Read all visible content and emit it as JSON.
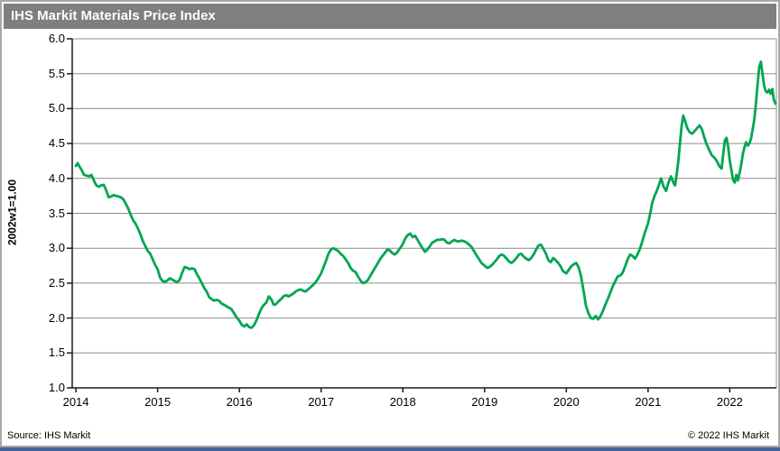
{
  "header": {
    "title": "IHS Markit Materials Price Index"
  },
  "footer": {
    "source": "Source: IHS Markit",
    "copyright": "© 2022  IHS Markit"
  },
  "colors": {
    "header_bg": "#7f7f7f",
    "line": "#00a651",
    "grid": "#8c8c8c",
    "axis": "#1a1a1a",
    "frame_border": "#a9a9a9",
    "bottom_bar": "#44639e"
  },
  "chart_data": {
    "type": "line",
    "title": "IHS Markit Materials Price Index",
    "xlabel": "",
    "ylabel": "2002w1=1.00",
    "ylim": [
      1.0,
      6.0
    ],
    "xlim": [
      2013.955,
      2022.57
    ],
    "grid": "horizontal",
    "legend": "none",
    "ytick_labels": [
      "6.0",
      "5.5",
      "5.0",
      "4.5",
      "4.0",
      "3.5",
      "3.0",
      "2.5",
      "2.0",
      "1.5",
      "1.0"
    ],
    "xtick_labels": [
      "2014",
      "2015",
      "2016",
      "2017",
      "2018",
      "2019",
      "2020",
      "2021",
      "2022"
    ],
    "series": [
      {
        "name": "IHS Markit Materials Price Index (2002w1=1.00)",
        "x": [
          2014.0,
          2014.02,
          2014.05,
          2014.08,
          2014.1,
          2014.13,
          2014.16,
          2014.19,
          2014.22,
          2014.25,
          2014.28,
          2014.31,
          2014.34,
          2014.37,
          2014.4,
          2014.43,
          2014.46,
          2014.49,
          2014.52,
          2014.55,
          2014.58,
          2014.61,
          2014.64,
          2014.67,
          2014.7,
          2014.73,
          2014.76,
          2014.79,
          2014.82,
          2014.85,
          2014.88,
          2014.91,
          2014.94,
          2014.97,
          2015.0,
          2015.03,
          2015.06,
          2015.09,
          2015.12,
          2015.15,
          2015.18,
          2015.21,
          2015.24,
          2015.27,
          2015.3,
          2015.33,
          2015.36,
          2015.39,
          2015.42,
          2015.45,
          2015.48,
          2015.51,
          2015.54,
          2015.57,
          2015.6,
          2015.63,
          2015.66,
          2015.69,
          2015.72,
          2015.75,
          2015.78,
          2015.81,
          2015.84,
          2015.87,
          2015.9,
          2015.93,
          2015.96,
          2016.0,
          2016.03,
          2016.06,
          2016.09,
          2016.12,
          2016.15,
          2016.18,
          2016.21,
          2016.24,
          2016.27,
          2016.3,
          2016.33,
          2016.36,
          2016.39,
          2016.42,
          2016.45,
          2016.48,
          2016.51,
          2016.54,
          2016.57,
          2016.6,
          2016.63,
          2016.66,
          2016.69,
          2016.72,
          2016.75,
          2016.78,
          2016.81,
          2016.84,
          2016.87,
          2016.9,
          2016.93,
          2016.96,
          2017.0,
          2017.03,
          2017.06,
          2017.09,
          2017.12,
          2017.15,
          2017.18,
          2017.21,
          2017.24,
          2017.27,
          2017.3,
          2017.33,
          2017.36,
          2017.39,
          2017.42,
          2017.45,
          2017.48,
          2017.51,
          2017.54,
          2017.57,
          2017.6,
          2017.63,
          2017.66,
          2017.69,
          2017.72,
          2017.75,
          2017.78,
          2017.81,
          2017.84,
          2017.87,
          2017.9,
          2017.93,
          2017.96,
          2018.0,
          2018.03,
          2018.06,
          2018.09,
          2018.12,
          2018.15,
          2018.18,
          2018.21,
          2018.24,
          2018.27,
          2018.3,
          2018.33,
          2018.36,
          2018.39,
          2018.42,
          2018.45,
          2018.48,
          2018.51,
          2018.54,
          2018.57,
          2018.6,
          2018.63,
          2018.66,
          2018.69,
          2018.72,
          2018.75,
          2018.78,
          2018.81,
          2018.84,
          2018.87,
          2018.9,
          2018.93,
          2018.96,
          2019.0,
          2019.03,
          2019.06,
          2019.09,
          2019.12,
          2019.15,
          2019.18,
          2019.21,
          2019.24,
          2019.27,
          2019.3,
          2019.33,
          2019.36,
          2019.39,
          2019.42,
          2019.45,
          2019.48,
          2019.51,
          2019.54,
          2019.57,
          2019.6,
          2019.63,
          2019.66,
          2019.69,
          2019.72,
          2019.75,
          2019.78,
          2019.81,
          2019.84,
          2019.87,
          2019.9,
          2019.93,
          2019.96,
          2020.0,
          2020.03,
          2020.06,
          2020.09,
          2020.12,
          2020.15,
          2020.18,
          2020.21,
          2020.24,
          2020.27,
          2020.3,
          2020.33,
          2020.36,
          2020.39,
          2020.42,
          2020.45,
          2020.48,
          2020.51,
          2020.54,
          2020.57,
          2020.6,
          2020.63,
          2020.66,
          2020.69,
          2020.72,
          2020.75,
          2020.78,
          2020.81,
          2020.84,
          2020.87,
          2020.9,
          2020.93,
          2020.96,
          2021.0,
          2021.03,
          2021.05,
          2021.08,
          2021.11,
          2021.14,
          2021.16,
          2021.19,
          2021.22,
          2021.25,
          2021.28,
          2021.31,
          2021.33,
          2021.35,
          2021.37,
          2021.39,
          2021.41,
          2021.43,
          2021.45,
          2021.48,
          2021.51,
          2021.54,
          2021.57,
          2021.6,
          2021.63,
          2021.66,
          2021.69,
          2021.72,
          2021.75,
          2021.78,
          2021.81,
          2021.84,
          2021.87,
          2021.9,
          2021.92,
          2021.94,
          2021.96,
          2021.98,
          2022.0,
          2022.02,
          2022.04,
          2022.06,
          2022.08,
          2022.1,
          2022.12,
          2022.14,
          2022.16,
          2022.18,
          2022.2,
          2022.22,
          2022.24,
          2022.26,
          2022.28,
          2022.3,
          2022.32,
          2022.34,
          2022.36,
          2022.38,
          2022.4,
          2022.42,
          2022.44,
          2022.46,
          2022.48,
          2022.5,
          2022.52,
          2022.54,
          2022.56
        ],
        "y": [
          4.18,
          4.22,
          4.16,
          4.1,
          4.05,
          4.04,
          4.03,
          4.05,
          3.97,
          3.9,
          3.88,
          3.9,
          3.91,
          3.83,
          3.73,
          3.74,
          3.76,
          3.75,
          3.74,
          3.73,
          3.7,
          3.64,
          3.57,
          3.48,
          3.4,
          3.35,
          3.28,
          3.2,
          3.1,
          3.03,
          2.96,
          2.92,
          2.84,
          2.76,
          2.7,
          2.58,
          2.53,
          2.52,
          2.54,
          2.57,
          2.55,
          2.53,
          2.51,
          2.55,
          2.65,
          2.73,
          2.72,
          2.7,
          2.71,
          2.7,
          2.63,
          2.57,
          2.5,
          2.43,
          2.38,
          2.3,
          2.27,
          2.25,
          2.26,
          2.25,
          2.21,
          2.19,
          2.17,
          2.15,
          2.13,
          2.08,
          2.02,
          1.96,
          1.9,
          1.88,
          1.91,
          1.87,
          1.86,
          1.9,
          1.97,
          2.06,
          2.14,
          2.19,
          2.22,
          2.31,
          2.27,
          2.19,
          2.2,
          2.24,
          2.27,
          2.31,
          2.33,
          2.31,
          2.33,
          2.35,
          2.38,
          2.4,
          2.41,
          2.39,
          2.38,
          2.41,
          2.44,
          2.47,
          2.51,
          2.56,
          2.64,
          2.73,
          2.82,
          2.92,
          2.98,
          3.0,
          2.98,
          2.96,
          2.92,
          2.89,
          2.84,
          2.79,
          2.72,
          2.68,
          2.66,
          2.6,
          2.54,
          2.5,
          2.51,
          2.54,
          2.6,
          2.66,
          2.72,
          2.78,
          2.84,
          2.89,
          2.93,
          2.98,
          2.97,
          2.93,
          2.91,
          2.94,
          2.99,
          3.06,
          3.14,
          3.19,
          3.21,
          3.16,
          3.18,
          3.12,
          3.06,
          3.0,
          2.95,
          2.98,
          3.03,
          3.08,
          3.1,
          3.12,
          3.12,
          3.13,
          3.12,
          3.08,
          3.07,
          3.1,
          3.12,
          3.1,
          3.1,
          3.11,
          3.1,
          3.08,
          3.05,
          3.02,
          2.96,
          2.9,
          2.85,
          2.79,
          2.75,
          2.72,
          2.73,
          2.76,
          2.8,
          2.84,
          2.89,
          2.91,
          2.89,
          2.85,
          2.81,
          2.79,
          2.82,
          2.86,
          2.91,
          2.92,
          2.88,
          2.85,
          2.83,
          2.86,
          2.91,
          2.98,
          3.04,
          3.05,
          2.99,
          2.92,
          2.83,
          2.8,
          2.86,
          2.83,
          2.79,
          2.74,
          2.67,
          2.64,
          2.69,
          2.74,
          2.77,
          2.79,
          2.73,
          2.6,
          2.4,
          2.18,
          2.07,
          2.0,
          1.99,
          2.03,
          1.98,
          2.03,
          2.11,
          2.2,
          2.28,
          2.37,
          2.46,
          2.53,
          2.6,
          2.61,
          2.65,
          2.74,
          2.84,
          2.91,
          2.89,
          2.85,
          2.91,
          2.99,
          3.1,
          3.22,
          3.36,
          3.52,
          3.65,
          3.75,
          3.83,
          3.93,
          4.0,
          3.88,
          3.82,
          3.94,
          4.03,
          3.94,
          3.9,
          4.05,
          4.25,
          4.5,
          4.75,
          4.9,
          4.83,
          4.72,
          4.66,
          4.64,
          4.68,
          4.72,
          4.76,
          4.7,
          4.58,
          4.48,
          4.4,
          4.33,
          4.3,
          4.25,
          4.18,
          4.14,
          4.35,
          4.55,
          4.58,
          4.45,
          4.25,
          4.12,
          3.98,
          3.94,
          4.05,
          3.97,
          4.08,
          4.2,
          4.35,
          4.45,
          4.52,
          4.47,
          4.5,
          4.57,
          4.7,
          4.85,
          5.08,
          5.35,
          5.6,
          5.67,
          5.5,
          5.33,
          5.25,
          5.23,
          5.27,
          5.21,
          5.28,
          5.12,
          5.07
        ]
      }
    ]
  }
}
